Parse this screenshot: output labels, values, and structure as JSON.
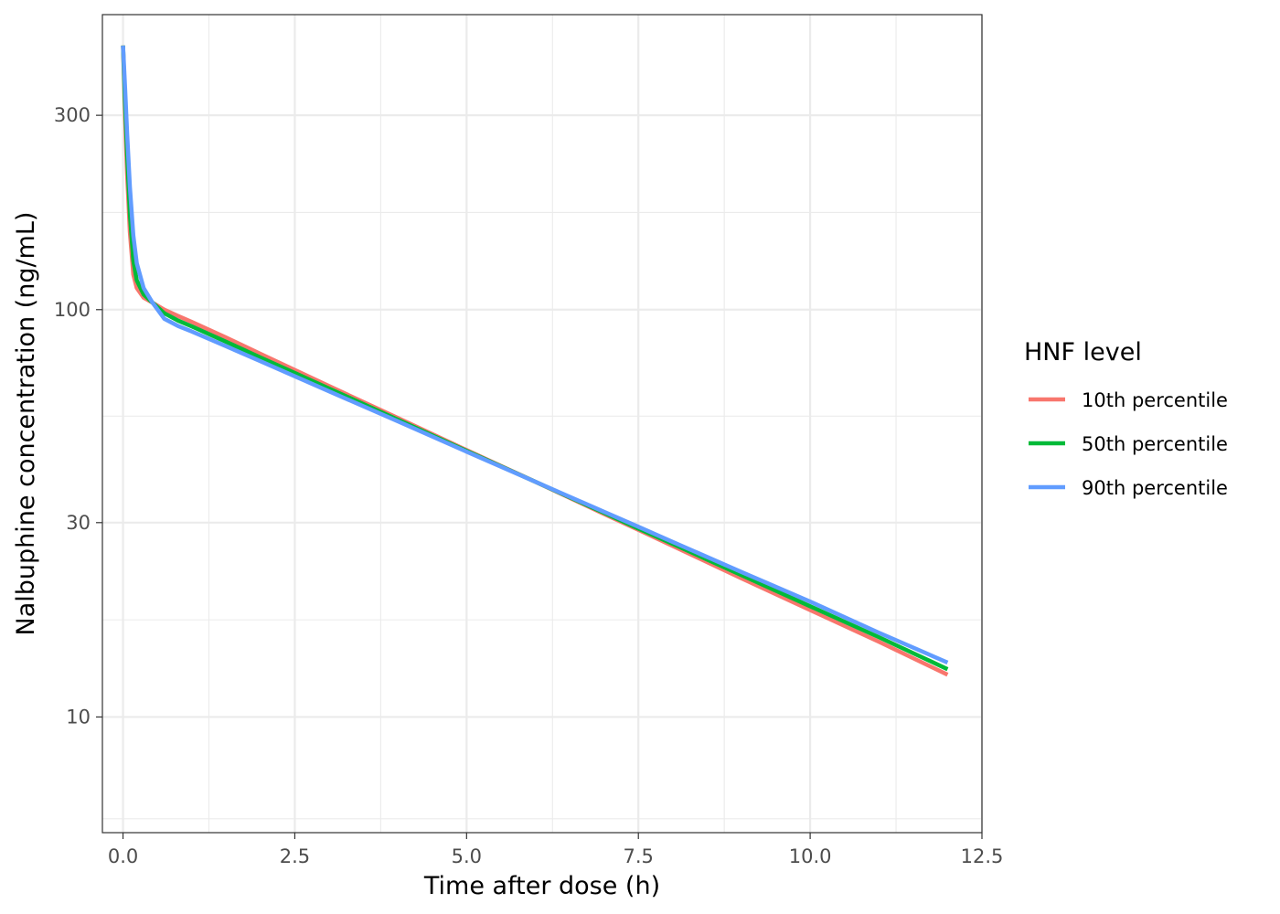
{
  "chart_data": {
    "type": "line",
    "xlabel": "Time after dose (h)",
    "ylabel": "Nalbuphine concentration (ng/mL)",
    "xlim": [
      -0.3,
      12.5
    ],
    "ylim": [
      5.2,
      530
    ],
    "y_scale": "log",
    "x_ticks": [
      0,
      2.5,
      5,
      7.5,
      10,
      12.5
    ],
    "x_tick_labels": [
      "0.0",
      "2.5",
      "5.0",
      "7.5",
      "10.0",
      "12.5"
    ],
    "y_ticks": [
      10,
      30,
      100,
      300
    ],
    "y_tick_labels": [
      "10",
      "30",
      "100",
      "300"
    ],
    "grid": true,
    "legend": {
      "title": "HNF level",
      "position": "right"
    },
    "series": [
      {
        "name": "10th percentile",
        "color": "#F8766D",
        "x": [
          0,
          0.03,
          0.06,
          0.1,
          0.15,
          0.2,
          0.3,
          0.43,
          0.6,
          0.8,
          1.0,
          1.5,
          2.0,
          2.5,
          3.0,
          4.0,
          5.0,
          6.0,
          7.0,
          7.5,
          8.0,
          9.0,
          10.0,
          11.0,
          12.0
        ],
        "y": [
          445,
          300,
          215,
          155,
          122,
          113,
          107,
          104,
          100,
          96.5,
          93.3,
          85.4,
          77.9,
          71.1,
          64.9,
          54.2,
          45.2,
          37.8,
          31.5,
          28.8,
          26.3,
          21.9,
          18.3,
          15.3,
          12.7
        ]
      },
      {
        "name": "50th percentile",
        "color": "#00BA38",
        "x": [
          0,
          0.03,
          0.06,
          0.1,
          0.15,
          0.2,
          0.3,
          0.43,
          0.6,
          0.8,
          1.0,
          1.5,
          2.0,
          2.5,
          3.0,
          4.0,
          5.0,
          6.0,
          7.0,
          7.5,
          8.0,
          9.0,
          10.0,
          11.0,
          12.0
        ],
        "y": [
          445,
          320,
          240,
          172,
          132,
          118,
          109,
          104,
          98,
          94,
          91,
          83.4,
          76.3,
          69.9,
          64.0,
          53.7,
          45.0,
          37.8,
          31.7,
          29.0,
          26.6,
          22.3,
          18.7,
          15.7,
          13.1
        ]
      },
      {
        "name": "90th percentile",
        "color": "#619CFF",
        "x": [
          0,
          0.03,
          0.06,
          0.1,
          0.15,
          0.2,
          0.3,
          0.43,
          0.6,
          0.8,
          1.0,
          1.5,
          2.0,
          2.5,
          3.0,
          4.0,
          5.0,
          6.0,
          7.0,
          7.5,
          8.0,
          9.0,
          10.0,
          11.0,
          12.0
        ],
        "y": [
          445,
          350,
          270,
          200,
          152,
          130,
          113,
          104,
          95,
          91.2,
          88.4,
          81.3,
          74.7,
          68.6,
          63.0,
          53.2,
          44.8,
          37.8,
          31.9,
          29.3,
          26.9,
          22.7,
          19.2,
          16.1,
          13.6
        ]
      }
    ]
  }
}
